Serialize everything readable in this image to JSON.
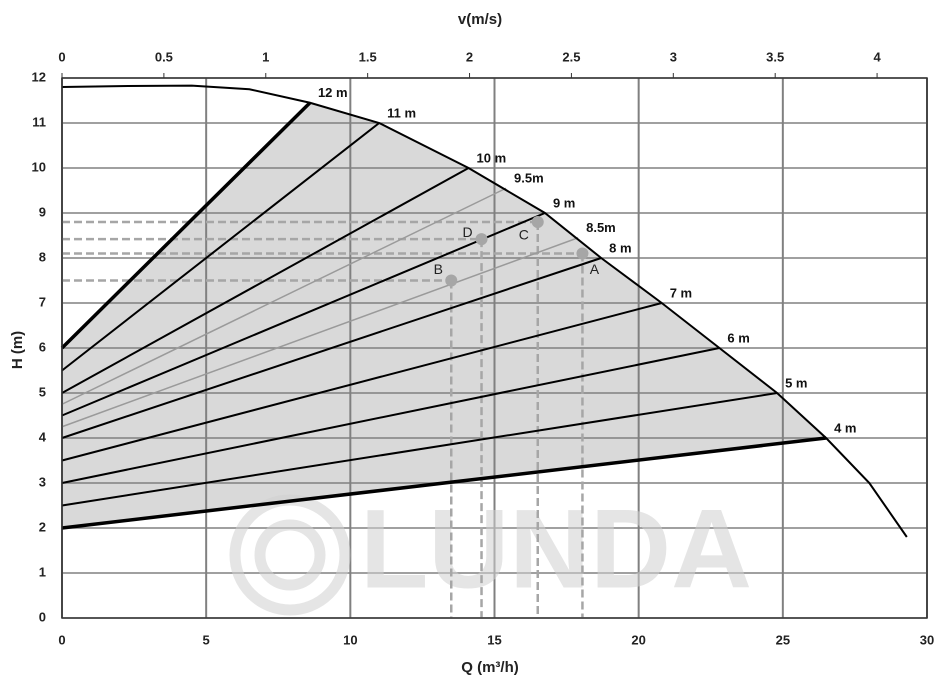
{
  "chart_data": {
    "type": "line",
    "x_label": "Q (m³/h)",
    "y_label": "H (m)",
    "x2_label": "v(m/s)",
    "watermark": "LUNDA",
    "xlim": [
      0,
      30
    ],
    "xticks": [
      0,
      5,
      10,
      15,
      20,
      25,
      30
    ],
    "ylim": [
      0,
      12
    ],
    "yticks": [
      0,
      1,
      2,
      3,
      4,
      5,
      6,
      7,
      8,
      9,
      10,
      11,
      12
    ],
    "x2lim": [
      0,
      4.245
    ],
    "x2ticks": [
      0,
      0.5,
      1,
      1.5,
      2,
      2.5,
      3,
      3.5,
      4
    ],
    "grid": true,
    "curve": {
      "color": "#000000",
      "x": [
        0,
        2,
        4.5,
        6.5,
        8.6,
        11,
        14.1,
        16.75,
        18.7,
        20.8,
        22.8,
        24.8,
        26.5,
        28,
        29.3
      ],
      "values": [
        11.8,
        11.82,
        11.83,
        11.75,
        11.45,
        11,
        10,
        9,
        8,
        7,
        6,
        5,
        4,
        3,
        1.8
      ]
    },
    "series": [
      {
        "name": "12 m",
        "color": "#000000",
        "width": 3.5,
        "x": [
          0,
          8.6
        ],
        "values": [
          6,
          11.45
        ]
      },
      {
        "name": "11 m",
        "color": "#000000",
        "width": 2,
        "x": [
          0,
          11
        ],
        "values": [
          5.5,
          11
        ]
      },
      {
        "name": "10 m",
        "color": "#000000",
        "width": 2,
        "x": [
          0,
          14.1
        ],
        "values": [
          5,
          10
        ]
      },
      {
        "name": "9.5m",
        "color": "#9a9a9a",
        "width": 1.5,
        "x": [
          0,
          15.4
        ],
        "values": [
          4.75,
          9.55
        ]
      },
      {
        "name": "9 m",
        "color": "#000000",
        "width": 2,
        "x": [
          0,
          16.75
        ],
        "values": [
          4.5,
          9
        ]
      },
      {
        "name": "8.5m",
        "color": "#9a9a9a",
        "width": 1.5,
        "x": [
          0,
          17.9
        ],
        "values": [
          4.25,
          8.45
        ]
      },
      {
        "name": "8 m",
        "color": "#000000",
        "width": 2,
        "x": [
          0,
          18.7
        ],
        "values": [
          4,
          8
        ]
      },
      {
        "name": "7 m",
        "color": "#000000",
        "width": 2,
        "x": [
          0,
          20.8
        ],
        "values": [
          3.5,
          7
        ]
      },
      {
        "name": "6 m",
        "color": "#000000",
        "width": 2,
        "x": [
          0,
          22.8
        ],
        "values": [
          3,
          6
        ]
      },
      {
        "name": "5 m",
        "color": "#000000",
        "width": 2,
        "x": [
          0,
          24.8
        ],
        "values": [
          2.5,
          5
        ]
      },
      {
        "name": "4 m",
        "color": "#000000",
        "width": 3.5,
        "x": [
          0,
          26.5
        ],
        "values": [
          2,
          4
        ]
      }
    ],
    "region_color": "#d9d9d9",
    "points": [
      {
        "label": "A",
        "x": 18.05,
        "y": 8.1
      },
      {
        "label": "B",
        "x": 13.5,
        "y": 7.5
      },
      {
        "label": "C",
        "x": 16.5,
        "y": 8.8
      },
      {
        "label": "D",
        "x": 14.55,
        "y": 8.42
      }
    ],
    "point_color": "#a6a6a6"
  }
}
